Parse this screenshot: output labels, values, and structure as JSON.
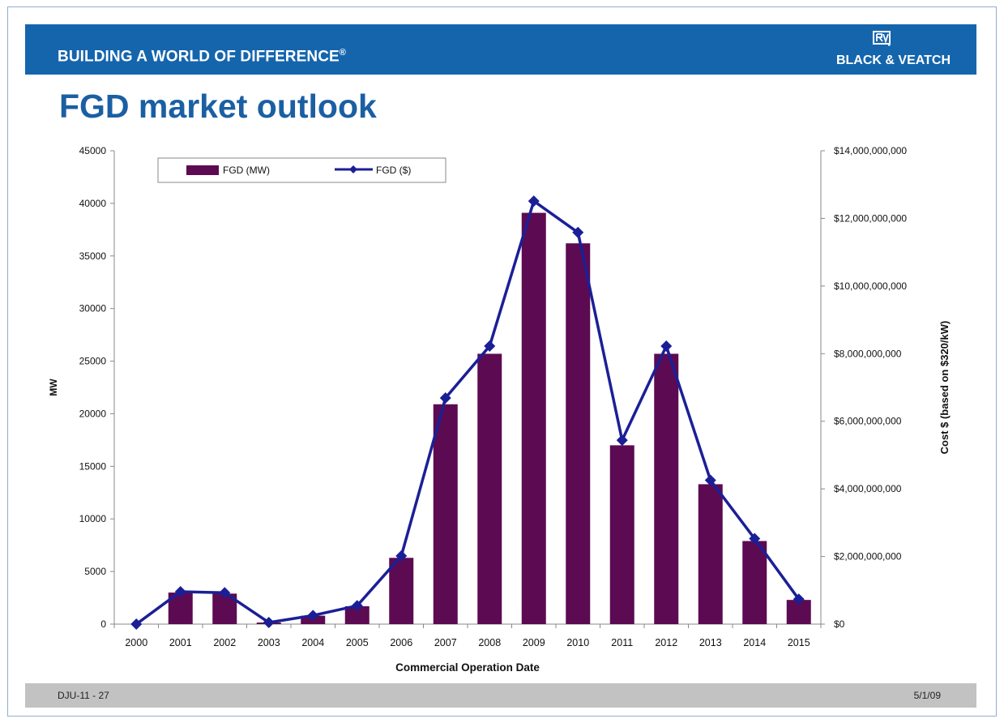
{
  "header": {
    "tagline": "BUILDING A WORLD OF DIFFERENCE",
    "tagline_mark": "®",
    "brand": "BLACK & VEATCH",
    "logo_icon": "black-veatch-logo-icon"
  },
  "title": "FGD market outlook",
  "footer": {
    "left": "DJU-11 - 27",
    "right": "5/1/09"
  },
  "colors": {
    "bar": "#5c0a52",
    "line": "#1b1f96",
    "banner": "#1565ad",
    "title": "#1b5fa3"
  },
  "chart_data": {
    "type": "bar",
    "categories": [
      "2000",
      "2001",
      "2002",
      "2003",
      "2004",
      "2005",
      "2006",
      "2007",
      "2008",
      "2009",
      "2010",
      "2011",
      "2012",
      "2013",
      "2014",
      "2015"
    ],
    "series": [
      {
        "name": "FGD (MW)",
        "type": "bar",
        "axis": "left",
        "values": [
          0,
          3000,
          2900,
          150,
          800,
          1700,
          6300,
          20900,
          25700,
          39100,
          36200,
          17000,
          25700,
          13300,
          7900,
          2300
        ]
      },
      {
        "name": "FGD ($)",
        "type": "line",
        "axis": "right",
        "values": [
          0,
          960000000,
          928000000,
          48000000,
          256000000,
          544000000,
          2016000000,
          6688000000,
          8224000000,
          12512000000,
          11584000000,
          5440000000,
          8224000000,
          4256000000,
          2528000000,
          736000000
        ]
      }
    ],
    "xlabel": "Commercial Operation Date",
    "ylabel": "MW",
    "y2label": "Cost $ (based on $320/kW)",
    "ylim": [
      0,
      45000
    ],
    "y2lim": [
      0,
      14000000000
    ],
    "yticks": [
      "0",
      "5000",
      "10000",
      "15000",
      "20000",
      "25000",
      "30000",
      "35000",
      "40000",
      "45000"
    ],
    "y2ticks": [
      "$0",
      "$2,000,000,000",
      "$4,000,000,000",
      "$6,000,000,000",
      "$8,000,000,000",
      "$10,000,000,000",
      "$12,000,000,000",
      "$14,000,000,000"
    ],
    "legend": "top-left",
    "grid": false
  }
}
